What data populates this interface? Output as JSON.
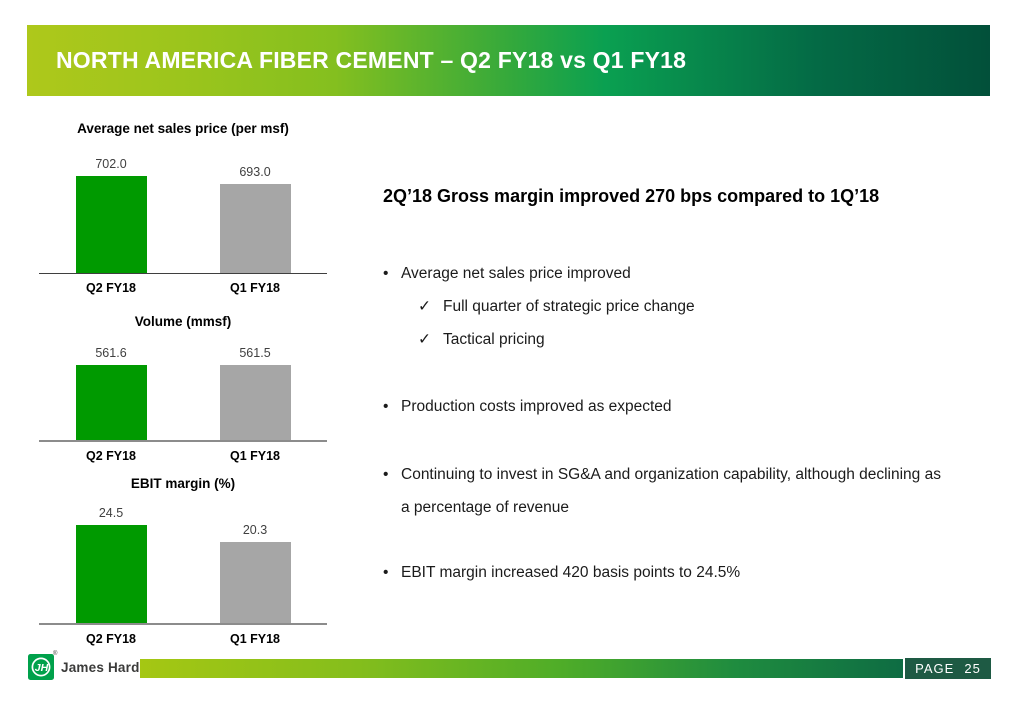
{
  "header": {
    "title": "NORTH AMERICA FIBER CEMENT – Q2 FY18 vs Q1 FY18"
  },
  "chart_data": [
    {
      "type": "bar",
      "title": "Average net sales price (per msf)",
      "categories": [
        "Q2 FY18",
        "Q1 FY18"
      ],
      "values": [
        702.0,
        693.0
      ],
      "value_labels": [
        "702.0",
        "693.0"
      ],
      "bar_colors": [
        "#009A00",
        "#A6A6A6"
      ],
      "ylim": [
        593,
        710
      ],
      "grid": false,
      "legend": false
    },
    {
      "type": "bar",
      "title": "Volume (mmsf)",
      "categories": [
        "Q2 FY18",
        "Q1 FY18"
      ],
      "values": [
        561.6,
        561.5
      ],
      "value_labels": [
        "561.6",
        "561.5"
      ],
      "bar_colors": [
        "#009A00",
        "#A6A6A6"
      ],
      "ylim": [
        480,
        600
      ],
      "grid": false,
      "legend": false
    },
    {
      "type": "bar",
      "title": "EBIT margin (%)",
      "categories": [
        "Q2 FY18",
        "Q1 FY18"
      ],
      "values": [
        24.5,
        20.3
      ],
      "value_labels": [
        "24.5",
        "20.3"
      ],
      "bar_colors": [
        "#009A00",
        "#A6A6A6"
      ],
      "ylim": [
        0,
        26
      ],
      "grid": false,
      "legend": false
    }
  ],
  "commentary": {
    "heading": "2Q’18 Gross margin improved 270 bps compared to 1Q’18",
    "bullet_char": "•",
    "check_char": "✓",
    "bullets": [
      {
        "text": "Average net sales price improved",
        "subs": [
          "Full quarter of strategic price change",
          "Tactical pricing"
        ]
      },
      {
        "text": "Production costs improved as expected",
        "subs": []
      },
      {
        "text": "Continuing to invest in SG&A and organization capability, although declining as a percentage of revenue",
        "subs": []
      },
      {
        "text": "EBIT margin increased 420 basis points to 24.5%",
        "subs": []
      }
    ]
  },
  "footer": {
    "logo_text": "James Hardie",
    "logo_monogram": "JH",
    "registered_mark": "®",
    "page_label": "PAGE",
    "page_number": "25"
  },
  "colors": {
    "bar_green": "#009A00",
    "bar_gray": "#A6A6A6",
    "header_gradient_left": "#AEC81B",
    "header_gradient_mid": "#0AA051",
    "header_gradient_right": "#02503A",
    "footer_gradient_left": "#A5C713",
    "footer_gradient_right": "#0E6C43",
    "page_box_bg": "#1E5A44",
    "logo_green": "#00A14B"
  }
}
